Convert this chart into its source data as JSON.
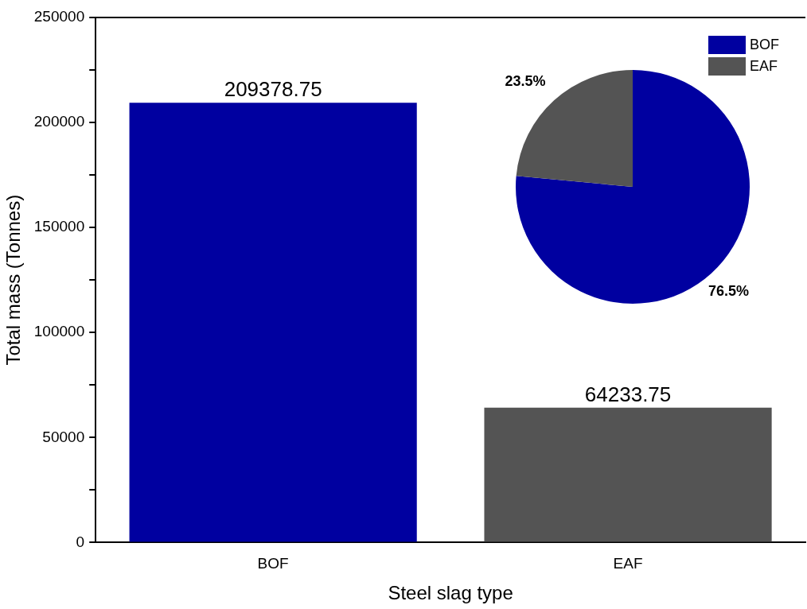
{
  "chart_data": [
    {
      "type": "bar",
      "xlabel": "Steel slag type",
      "ylabel": "Total mass (Tonnes)",
      "categories": [
        "BOF",
        "EAF"
      ],
      "values": [
        209378.75,
        64233.75
      ],
      "colors": [
        "#0000a0",
        "#545454"
      ],
      "ylim": [
        0,
        250000
      ],
      "yticks": [
        0,
        {
          "value": 25000,
          "label": null
        },
        50000,
        {
          "value": 75000,
          "label": null
        },
        100000,
        {
          "value": 125000,
          "label": null
        },
        150000,
        {
          "value": 175000,
          "label": null
        },
        200000,
        {
          "value": 225000,
          "label": null
        },
        250000
      ],
      "data_labels": true,
      "grid": false,
      "legend": false
    },
    {
      "type": "pie",
      "categories": [
        "BOF",
        "EAF"
      ],
      "values": [
        76.5,
        23.5
      ],
      "colors": [
        "#0000a0",
        "#545454"
      ],
      "value_labels": [
        "76.5%",
        "23.5%"
      ],
      "legend": "top right"
    }
  ]
}
